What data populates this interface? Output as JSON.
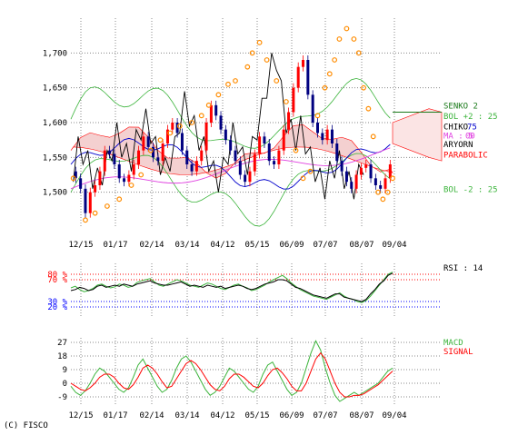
{
  "copyright": "(C) FISCO",
  "colors": {
    "candle_up": "#ff0000",
    "candle_down": "#000080",
    "senko2": "#1a7a1a",
    "bollinger": "#3cb43c",
    "chiko": "#000000",
    "ma": "#e040e0",
    "parabolic": "#ff8c00",
    "kumo": "#ff0000",
    "rsi": "#3cb43c",
    "rsi_other": "#000000",
    "macd": "#3cb43c",
    "signal": "#ff0000",
    "blue_line": "#0000cc"
  },
  "chart_data": [
    {
      "type": "line",
      "panel": "price",
      "ylim": [
        1450,
        1750
      ],
      "y_ticks": [
        "1,700",
        "1,650",
        "1,600",
        "1,550",
        "1,500"
      ],
      "x_labels": [
        "12/15",
        "01/17",
        "02/14",
        "03/14",
        "04/12",
        "05/15",
        "06/09",
        "07/07",
        "08/07",
        "09/04"
      ],
      "grid": true,
      "legend": [
        {
          "label": "SENKO 2",
          "color": "#1a7a1a"
        },
        {
          "label": "BOL +2 : 25",
          "color": "#3cb43c"
        },
        {
          "label": "CHIKO",
          "color": "#000000"
        },
        {
          "label": "75",
          "color": "#0000cc"
        },
        {
          "label": "MA : 5",
          "color": "#e040e0"
        },
        {
          "label": "00",
          "color": "#e040e0"
        },
        {
          "label": "ARYORN",
          "color": "#000000"
        },
        {
          "label": "PARABOLIC",
          "color": "#ff0000"
        },
        {
          "label": "BOL -2 : 25",
          "color": "#3cb43c"
        }
      ],
      "close_points": [
        [
          0,
          1530
        ],
        [
          4,
          1520
        ],
        [
          8,
          1505
        ],
        [
          12,
          1470
        ],
        [
          16,
          1500
        ],
        [
          20,
          1510
        ],
        [
          24,
          1530
        ],
        [
          28,
          1560
        ],
        [
          32,
          1555
        ],
        [
          36,
          1540
        ],
        [
          40,
          1520
        ],
        [
          44,
          1515
        ],
        [
          48,
          1525
        ],
        [
          52,
          1540
        ],
        [
          56,
          1560
        ],
        [
          60,
          1580
        ],
        [
          64,
          1565
        ],
        [
          68,
          1550
        ],
        [
          72,
          1545
        ],
        [
          76,
          1570
        ],
        [
          80,
          1590
        ],
        [
          84,
          1600
        ],
        [
          88,
          1585
        ],
        [
          92,
          1560
        ],
        [
          96,
          1540
        ],
        [
          100,
          1530
        ],
        [
          104,
          1545
        ],
        [
          108,
          1560
        ],
        [
          112,
          1600
        ],
        [
          116,
          1625
        ],
        [
          120,
          1610
        ],
        [
          124,
          1590
        ],
        [
          128,
          1575
        ],
        [
          132,
          1560
        ],
        [
          136,
          1545
        ],
        [
          140,
          1525
        ],
        [
          144,
          1515
        ],
        [
          148,
          1530
        ],
        [
          152,
          1555
        ],
        [
          156,
          1580
        ],
        [
          160,
          1570
        ],
        [
          164,
          1545
        ],
        [
          168,
          1540
        ],
        [
          172,
          1560
        ],
        [
          176,
          1590
        ],
        [
          180,
          1615
        ],
        [
          184,
          1650
        ],
        [
          188,
          1680
        ],
        [
          192,
          1690
        ],
        [
          196,
          1640
        ],
        [
          200,
          1600
        ],
        [
          204,
          1585
        ],
        [
          208,
          1575
        ],
        [
          212,
          1590
        ],
        [
          216,
          1570
        ],
        [
          220,
          1545
        ],
        [
          224,
          1530
        ],
        [
          228,
          1515
        ],
        [
          232,
          1505
        ],
        [
          236,
          1525
        ],
        [
          240,
          1535
        ],
        [
          244,
          1540
        ],
        [
          248,
          1520
        ],
        [
          252,
          1510
        ],
        [
          256,
          1505
        ],
        [
          260,
          1520
        ],
        [
          264,
          1540
        ]
      ],
      "parabolic_points": [
        [
          2,
          1520
        ],
        [
          12,
          1460
        ],
        [
          20,
          1470
        ],
        [
          30,
          1480
        ],
        [
          40,
          1490
        ],
        [
          50,
          1510
        ],
        [
          58,
          1525
        ],
        [
          66,
          1560
        ],
        [
          74,
          1575
        ],
        [
          82,
          1585
        ],
        [
          90,
          1595
        ],
        [
          100,
          1600
        ],
        [
          108,
          1610
        ],
        [
          114,
          1625
        ],
        [
          122,
          1640
        ],
        [
          130,
          1655
        ],
        [
          136,
          1660
        ],
        [
          146,
          1680
        ],
        [
          150,
          1700
        ],
        [
          156,
          1715
        ],
        [
          162,
          1690
        ],
        [
          170,
          1660
        ],
        [
          178,
          1630
        ],
        [
          186,
          1560
        ],
        [
          192,
          1520
        ],
        [
          198,
          1530
        ],
        [
          204,
          1610
        ],
        [
          210,
          1650
        ],
        [
          214,
          1670
        ],
        [
          218,
          1690
        ],
        [
          222,
          1720
        ],
        [
          228,
          1735
        ],
        [
          234,
          1720
        ],
        [
          238,
          1700
        ],
        [
          242,
          1650
        ],
        [
          246,
          1620
        ],
        [
          250,
          1580
        ],
        [
          254,
          1500
        ],
        [
          258,
          1490
        ],
        [
          262,
          1500
        ],
        [
          266,
          1520
        ]
      ]
    },
    {
      "type": "line",
      "panel": "rsi",
      "ylim": [
        0,
        100
      ],
      "y_ticks": [
        "80 %",
        "70 %",
        "30 %",
        "20 %"
      ],
      "reference_lines": [
        80,
        70,
        30,
        20
      ],
      "series": [
        {
          "name": "RSI : 14",
          "values": [
            55,
            58,
            52,
            48,
            50,
            54,
            60,
            62,
            58,
            55,
            57,
            62,
            60,
            56,
            58,
            65,
            68,
            70,
            72,
            66,
            60,
            58,
            62,
            66,
            70,
            68,
            64,
            60,
            58,
            56,
            60,
            64,
            62,
            58,
            54,
            52,
            56,
            60,
            62,
            58,
            55,
            50,
            52,
            56,
            60,
            66,
            70,
            74,
            78,
            72,
            64,
            58,
            52,
            48,
            44,
            40,
            38,
            36,
            34,
            38,
            42,
            46,
            40,
            36,
            34,
            30,
            28,
            32,
            40,
            50,
            60,
            70,
            80,
            84
          ]
        },
        {
          "values": [
            50,
            52,
            56,
            54,
            50,
            52,
            58,
            60,
            56,
            58,
            60,
            58,
            62,
            60,
            58,
            62,
            64,
            66,
            68,
            64,
            62,
            60,
            60,
            62,
            64,
            66,
            62,
            58,
            60,
            58,
            56,
            60,
            58,
            56,
            58,
            54,
            56,
            58,
            60,
            58,
            54,
            52,
            54,
            58,
            62,
            64,
            66,
            70,
            70,
            68,
            62,
            56,
            54,
            50,
            46,
            42,
            40,
            38,
            36,
            40,
            44,
            44,
            38,
            36,
            34,
            32,
            30,
            34,
            44,
            52,
            62,
            68,
            78,
            82
          ]
        }
      ]
    },
    {
      "type": "line",
      "panel": "macd",
      "ylim": [
        -15,
        30
      ],
      "y_ticks": [
        "27",
        "18",
        "9",
        "0",
        "-9"
      ],
      "y_tick_values": [
        27,
        18,
        9,
        0,
        -9
      ],
      "series": [
        {
          "name": "MACD",
          "values": [
            -2,
            -6,
            -8,
            -5,
            0,
            6,
            10,
            8,
            4,
            0,
            -4,
            -6,
            -3,
            4,
            12,
            16,
            10,
            4,
            -2,
            -6,
            -4,
            2,
            10,
            16,
            18,
            14,
            8,
            2,
            -4,
            -8,
            -6,
            -2,
            4,
            10,
            8,
            4,
            0,
            -4,
            -6,
            -2,
            6,
            12,
            14,
            8,
            2,
            -4,
            -8,
            -6,
            0,
            10,
            20,
            28,
            22,
            10,
            0,
            -8,
            -12,
            -10,
            -8,
            -6,
            -8,
            -6,
            -4,
            -2,
            0,
            4,
            8,
            10
          ]
        },
        {
          "name": "SIGNAL",
          "values": [
            0,
            -2,
            -4,
            -5,
            -3,
            0,
            4,
            6,
            6,
            4,
            0,
            -3,
            -4,
            -1,
            4,
            10,
            12,
            10,
            6,
            1,
            -3,
            -2,
            3,
            8,
            13,
            15,
            13,
            9,
            4,
            -1,
            -4,
            -5,
            -2,
            3,
            6,
            6,
            4,
            1,
            -2,
            -3,
            0,
            5,
            9,
            10,
            7,
            3,
            -2,
            -5,
            -5,
            0,
            8,
            16,
            20,
            16,
            8,
            0,
            -6,
            -9,
            -9,
            -8,
            -8,
            -7,
            -5,
            -3,
            -1,
            2,
            5,
            8
          ]
        }
      ]
    }
  ]
}
